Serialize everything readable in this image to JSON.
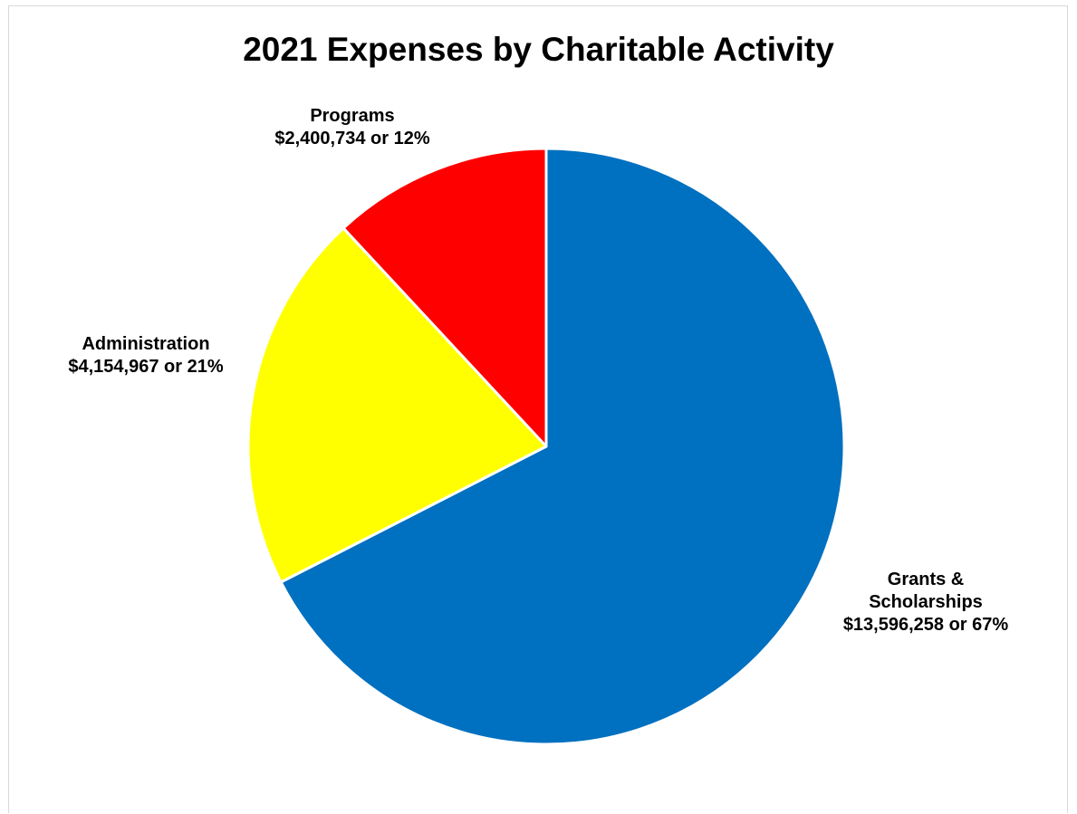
{
  "chart_data": {
    "type": "pie",
    "title": "2021 Expenses by Charitable Activity",
    "start_angle_deg": 0,
    "direction": "clockwise",
    "slices": [
      {
        "name": "Grants & Scholarships",
        "value": 13596258,
        "percent": 67,
        "color": "#0070C0",
        "label_lines": [
          "Grants &",
          "Scholarships",
          "$13,596,258 or 67%"
        ]
      },
      {
        "name": "Administration",
        "value": 4154967,
        "percent": 21,
        "color": "#FFFF00",
        "label_lines": [
          "Administration",
          "$4,154,967 or 21%"
        ]
      },
      {
        "name": "Programs",
        "value": 2400734,
        "percent": 12,
        "color": "#FF0000",
        "label_lines": [
          "Programs",
          "$2,400,734 or 12%"
        ]
      }
    ],
    "legend": "none",
    "slice_border_color": "#FFFFFF"
  }
}
